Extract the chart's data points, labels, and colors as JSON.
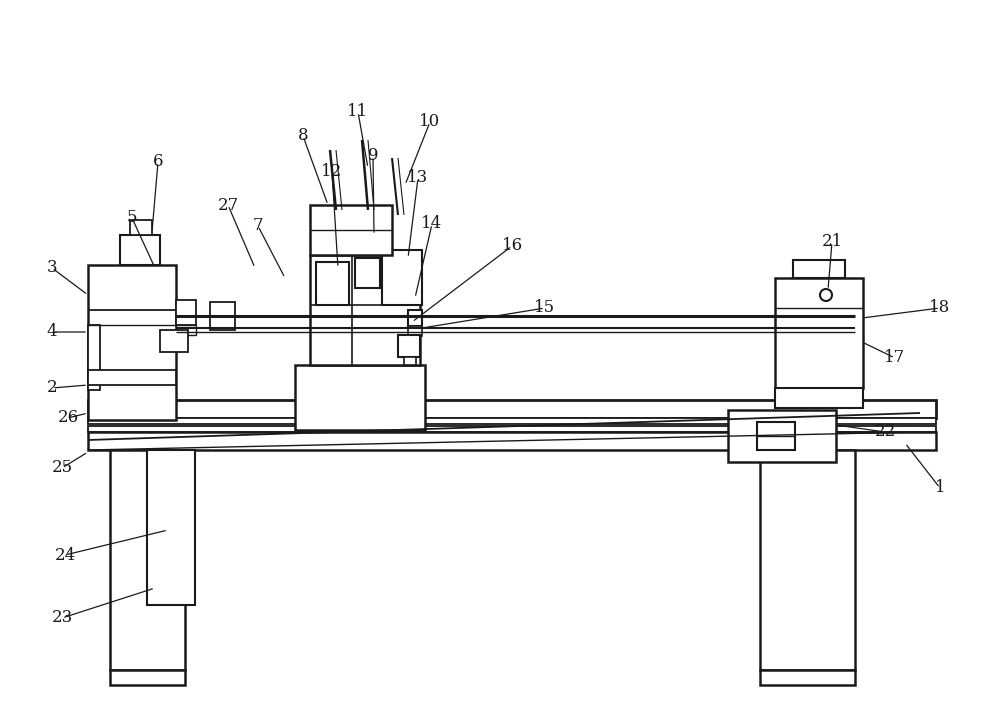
{
  "bg": "#ffffff",
  "lc": "#1a1a1a",
  "figsize": [
    10.0,
    7.04
  ],
  "dpi": 100,
  "annotations": [
    [
      "1",
      940,
      488,
      905,
      443
    ],
    [
      "2",
      52,
      388,
      88,
      385
    ],
    [
      "3",
      52,
      268,
      88,
      295
    ],
    [
      "4",
      52,
      332,
      88,
      332
    ],
    [
      "5",
      132,
      218,
      155,
      268
    ],
    [
      "6",
      158,
      162,
      152,
      232
    ],
    [
      "7",
      258,
      226,
      285,
      278
    ],
    [
      "8",
      303,
      136,
      328,
      205
    ],
    [
      "9",
      373,
      156,
      374,
      235
    ],
    [
      "10",
      430,
      122,
      405,
      185
    ],
    [
      "11",
      358,
      112,
      368,
      168
    ],
    [
      "12",
      332,
      172,
      338,
      268
    ],
    [
      "13",
      418,
      178,
      408,
      258
    ],
    [
      "14",
      432,
      224,
      415,
      298
    ],
    [
      "15",
      545,
      308,
      422,
      328
    ],
    [
      "16",
      512,
      246,
      412,
      322
    ],
    [
      "17",
      895,
      358,
      862,
      342
    ],
    [
      "18",
      940,
      308,
      862,
      318
    ],
    [
      "21",
      832,
      242,
      828,
      290
    ],
    [
      "22",
      885,
      432,
      836,
      425
    ],
    [
      "23",
      62,
      618,
      155,
      588
    ],
    [
      "24",
      65,
      555,
      168,
      530
    ],
    [
      "25",
      62,
      468,
      88,
      452
    ],
    [
      "26",
      68,
      418,
      88,
      413
    ],
    [
      "27",
      228,
      205,
      255,
      268
    ]
  ]
}
